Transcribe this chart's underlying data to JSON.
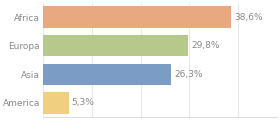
{
  "categories": [
    "Africa",
    "Europa",
    "Asia",
    "America"
  ],
  "values": [
    38.6,
    29.8,
    26.3,
    5.3
  ],
  "bar_colors": [
    "#e8a97e",
    "#b5c98a",
    "#7b9cc4",
    "#f0d080"
  ],
  "label_texts": [
    "38,6%",
    "29,8%",
    "26,3%",
    "5,3%"
  ],
  "background_color": "#ffffff",
  "text_color": "#888888",
  "bar_height": 0.75,
  "xlim": [
    0,
    48
  ],
  "label_fontsize": 6.5,
  "tick_fontsize": 6.5,
  "grid_color": "#dddddd",
  "figsize": [
    2.8,
    1.2
  ],
  "dpi": 100
}
